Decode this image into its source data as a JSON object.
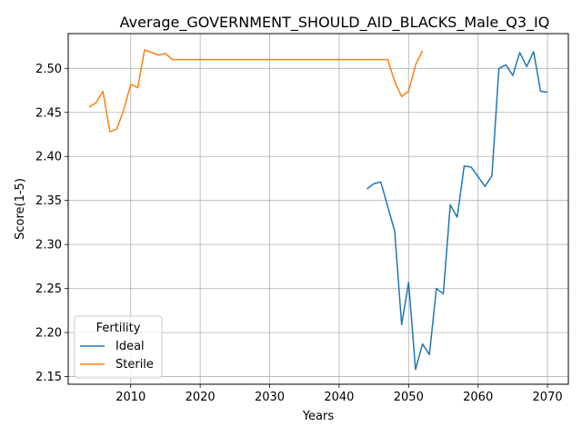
{
  "chart_data": {
    "type": "line",
    "title": "Average_GOVERNMENT_SHOULD_AID_BLACKS_Male_Q3_IQ",
    "xlabel": "Years",
    "ylabel": "Score(1-5)",
    "xlim": [
      2001,
      2073
    ],
    "ylim": [
      2.1413,
      2.5395
    ],
    "xticks": [
      2010,
      2020,
      2030,
      2040,
      2050,
      2060,
      2070
    ],
    "yticks": [
      2.15,
      2.2,
      2.25,
      2.3,
      2.35,
      2.4,
      2.45,
      2.5
    ],
    "grid": true,
    "legend": {
      "title": "Fertility",
      "placement": "lower-left"
    },
    "series": [
      {
        "name": "Ideal",
        "color": "#1f77b4",
        "x": [
          2044,
          2045,
          2046,
          2047,
          2048,
          2049,
          2050,
          2051,
          2052,
          2053,
          2054,
          2055,
          2056,
          2057,
          2058,
          2059,
          2060,
          2061,
          2062,
          2063,
          2064,
          2065,
          2066,
          2067,
          2068,
          2069,
          2070
        ],
        "y": [
          2.363,
          2.369,
          2.371,
          2.343,
          2.315,
          2.209,
          2.257,
          2.158,
          2.187,
          2.175,
          2.25,
          2.244,
          2.345,
          2.331,
          2.389,
          2.388,
          2.377,
          2.366,
          2.378,
          2.5,
          2.504,
          2.492,
          2.518,
          2.502,
          2.519,
          2.474,
          2.473
        ]
      },
      {
        "name": "Sterile",
        "color": "#ff7f0e",
        "x": [
          2004,
          2005,
          2006,
          2007,
          2008,
          2009,
          2010,
          2011,
          2012,
          2013,
          2014,
          2015,
          2016,
          2017,
          2020,
          2025,
          2030,
          2035,
          2040,
          2045,
          2046,
          2047,
          2048,
          2049,
          2050,
          2051,
          2052
        ],
        "y": [
          2.456,
          2.461,
          2.474,
          2.428,
          2.431,
          2.453,
          2.482,
          2.478,
          2.521,
          2.518,
          2.515,
          2.517,
          2.51,
          2.51,
          2.51,
          2.51,
          2.51,
          2.51,
          2.51,
          2.51,
          2.51,
          2.51,
          2.485,
          2.468,
          2.474,
          2.504,
          2.52
        ]
      }
    ]
  }
}
